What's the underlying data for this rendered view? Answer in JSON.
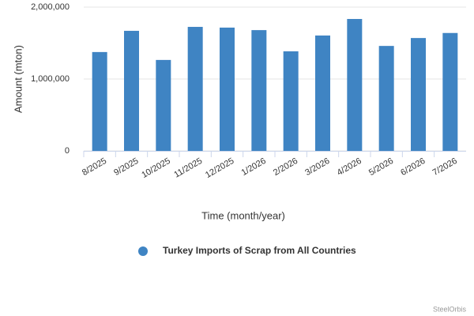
{
  "chart_data": {
    "type": "bar",
    "x_label": "Time (month/year)",
    "y_label": "Amount (mton)",
    "categories": [
      "8/2025",
      "9/2025",
      "10/2025",
      "11/2025",
      "12/2025",
      "1/2026",
      "2/2026",
      "3/2026",
      "4/2026",
      "5/2026",
      "6/2026",
      "7/2026"
    ],
    "series": [
      {
        "name": "Turkey Imports of Scrap from All Countries",
        "color": "#3f84c3",
        "values": [
          1375000,
          1670000,
          1265000,
          1725000,
          1715000,
          1680000,
          1385000,
          1605000,
          1835000,
          1460000,
          1570000,
          1640000
        ]
      }
    ],
    "ylim": [
      0,
      2000000
    ],
    "yticks": [
      0,
      {
        "value": 1000000,
        "label": "1,000,000"
      },
      {
        "value": 2000000,
        "label": "2,000,000"
      }
    ],
    "grid": true,
    "legend": "bottom",
    "credits": "SteelOrbis"
  }
}
